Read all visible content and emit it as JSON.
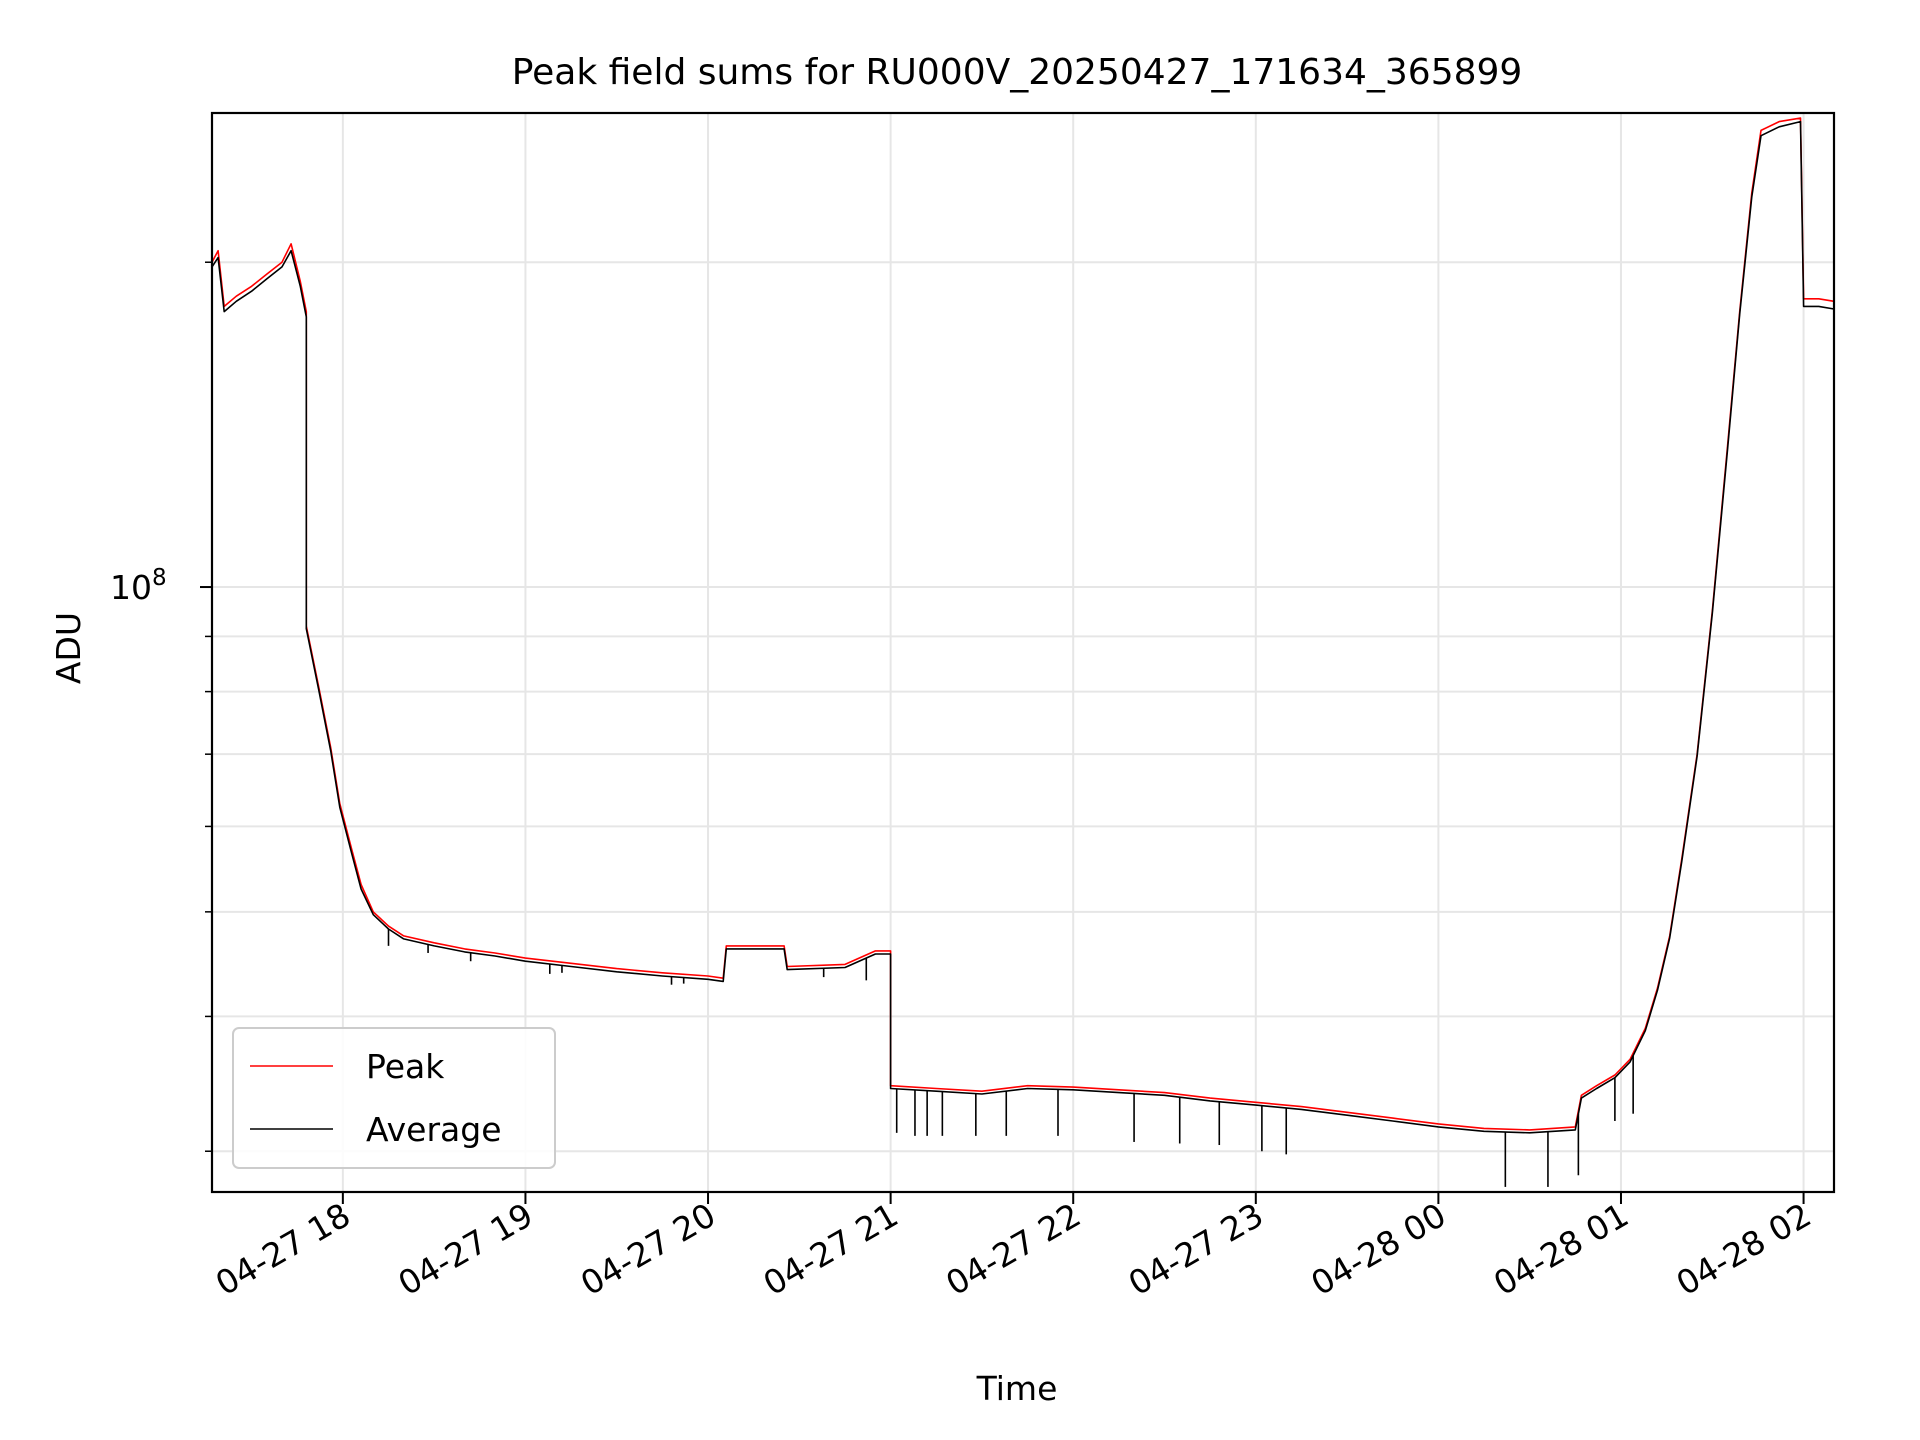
{
  "chart_data": {
    "type": "line",
    "title": "Peak field sums for RU000V_20250427_171634_365899",
    "xlabel": "Time",
    "ylabel": "ADU",
    "x_axis": {
      "type": "datetime",
      "range": [
        "2025-04-27 17:17",
        "2025-04-28 02:10"
      ],
      "ticks": [
        {
          "value": "2025-04-27 18:00",
          "label": "04-27 18"
        },
        {
          "value": "2025-04-27 19:00",
          "label": "04-27 19"
        },
        {
          "value": "2025-04-27 20:00",
          "label": "04-27 20"
        },
        {
          "value": "2025-04-27 21:00",
          "label": "04-27 21"
        },
        {
          "value": "2025-04-27 22:00",
          "label": "04-27 22"
        },
        {
          "value": "2025-04-27 23:00",
          "label": "04-27 23"
        },
        {
          "value": "2025-04-28 00:00",
          "label": "04-28 00"
        },
        {
          "value": "2025-04-28 01:00",
          "label": "04-28 01"
        },
        {
          "value": "2025-04-28 02:00",
          "label": "04-28 02"
        }
      ]
    },
    "y_axis": {
      "scale": "log",
      "range": [
        27500000,
        275000000
      ],
      "major_ticks": [
        {
          "value": 100000000,
          "label_base": "10",
          "label_exp": "8"
        }
      ],
      "minor_ticks": [
        30000000,
        40000000,
        50000000,
        60000000,
        70000000,
        80000000,
        90000000,
        200000000
      ]
    },
    "grid": true,
    "legend": {
      "position": "lower-left"
    },
    "series": [
      {
        "name": "Peak",
        "color": "#ff0000",
        "points": [
          [
            "2025-04-27 17:17",
            200000000
          ],
          [
            "2025-04-27 17:19",
            205000000
          ],
          [
            "2025-04-27 17:21",
            182000000
          ],
          [
            "2025-04-27 17:25",
            186000000
          ],
          [
            "2025-04-27 17:30",
            190000000
          ],
          [
            "2025-04-27 17:35",
            195000000
          ],
          [
            "2025-04-27 17:40",
            200000000
          ],
          [
            "2025-04-27 17:43",
            208000000
          ],
          [
            "2025-04-27 17:46",
            192000000
          ],
          [
            "2025-04-27 17:48",
            180000000
          ],
          [
            "2025-04-27 17:48",
            92000000
          ],
          [
            "2025-04-27 17:52",
            81000000
          ],
          [
            "2025-04-27 17:56",
            71000000
          ],
          [
            "2025-04-27 17:59",
            63000000
          ],
          [
            "2025-04-27 18:03",
            57000000
          ],
          [
            "2025-04-27 18:06",
            53000000
          ],
          [
            "2025-04-27 18:10",
            50000000
          ],
          [
            "2025-04-27 18:15",
            48500000
          ],
          [
            "2025-04-27 18:20",
            47500000
          ],
          [
            "2025-04-27 18:30",
            46800000
          ],
          [
            "2025-04-27 18:40",
            46200000
          ],
          [
            "2025-04-27 18:50",
            45800000
          ],
          [
            "2025-04-27 19:00",
            45300000
          ],
          [
            "2025-04-27 19:15",
            44800000
          ],
          [
            "2025-04-27 19:30",
            44300000
          ],
          [
            "2025-04-27 19:45",
            43900000
          ],
          [
            "2025-04-27 20:00",
            43600000
          ],
          [
            "2025-04-27 20:05",
            43400000
          ],
          [
            "2025-04-27 20:06",
            46500000
          ],
          [
            "2025-04-27 20:25",
            46500000
          ],
          [
            "2025-04-27 20:26",
            44500000
          ],
          [
            "2025-04-27 20:45",
            44700000
          ],
          [
            "2025-04-27 20:55",
            46000000
          ],
          [
            "2025-04-27 21:00",
            46000000
          ],
          [
            "2025-04-27 21:00",
            34500000
          ],
          [
            "2025-04-27 21:15",
            34300000
          ],
          [
            "2025-04-27 21:30",
            34100000
          ],
          [
            "2025-04-27 21:45",
            34500000
          ],
          [
            "2025-04-27 22:00",
            34400000
          ],
          [
            "2025-04-27 22:15",
            34200000
          ],
          [
            "2025-04-27 22:30",
            34000000
          ],
          [
            "2025-04-27 22:45",
            33600000
          ],
          [
            "2025-04-27 23:00",
            33300000
          ],
          [
            "2025-04-27 23:15",
            33000000
          ],
          [
            "2025-04-27 23:30",
            32600000
          ],
          [
            "2025-04-27 23:45",
            32200000
          ],
          [
            "2025-04-28 00:00",
            31800000
          ],
          [
            "2025-04-28 00:15",
            31500000
          ],
          [
            "2025-04-28 00:30",
            31400000
          ],
          [
            "2025-04-28 00:45",
            31600000
          ],
          [
            "2025-04-28 00:47",
            33800000
          ],
          [
            "2025-04-28 00:52",
            34500000
          ],
          [
            "2025-04-28 00:58",
            35300000
          ],
          [
            "2025-04-28 01:03",
            36500000
          ],
          [
            "2025-04-28 01:08",
            39000000
          ],
          [
            "2025-04-28 01:12",
            42500000
          ],
          [
            "2025-04-28 01:16",
            47500000
          ],
          [
            "2025-04-28 01:20",
            56000000
          ],
          [
            "2025-04-28 01:25",
            70000000
          ],
          [
            "2025-04-28 01:30",
            95000000
          ],
          [
            "2025-04-28 01:35",
            135000000
          ],
          [
            "2025-04-28 01:39",
            180000000
          ],
          [
            "2025-04-28 01:43",
            232000000
          ],
          [
            "2025-04-28 01:46",
            265000000
          ],
          [
            "2025-04-28 01:52",
            270000000
          ],
          [
            "2025-04-28 01:59",
            272000000
          ],
          [
            "2025-04-28 02:00",
            185000000
          ],
          [
            "2025-04-28 02:05",
            185000000
          ],
          [
            "2025-04-28 02:10",
            184000000
          ]
        ]
      },
      {
        "name": "Average",
        "color": "#000000",
        "points": [
          [
            "2025-04-27 17:17",
            198000000
          ],
          [
            "2025-04-27 17:19",
            202000000
          ],
          [
            "2025-04-27 17:21",
            180000000
          ],
          [
            "2025-04-27 17:25",
            184000000
          ],
          [
            "2025-04-27 17:30",
            188000000
          ],
          [
            "2025-04-27 17:35",
            193000000
          ],
          [
            "2025-04-27 17:40",
            198000000
          ],
          [
            "2025-04-27 17:43",
            205000000
          ],
          [
            "2025-04-27 17:46",
            190000000
          ],
          [
            "2025-04-27 17:48",
            178000000
          ],
          [
            "2025-04-27 17:48",
            91500000
          ],
          [
            "2025-04-27 17:52",
            80500000
          ],
          [
            "2025-04-27 17:56",
            70500000
          ],
          [
            "2025-04-27 17:59",
            62500000
          ],
          [
            "2025-04-27 18:03",
            56500000
          ],
          [
            "2025-04-27 18:06",
            52500000
          ],
          [
            "2025-04-27 18:10",
            49700000
          ],
          [
            "2025-04-27 18:15",
            48200000
          ],
          [
            "2025-04-27 18:20",
            47200000
          ],
          [
            "2025-04-27 18:30",
            46500000
          ],
          [
            "2025-04-27 18:40",
            45900000
          ],
          [
            "2025-04-27 18:50",
            45500000
          ],
          [
            "2025-04-27 19:00",
            45000000
          ],
          [
            "2025-04-27 19:15",
            44500000
          ],
          [
            "2025-04-27 19:30",
            44000000
          ],
          [
            "2025-04-27 19:45",
            43600000
          ],
          [
            "2025-04-27 20:00",
            43300000
          ],
          [
            "2025-04-27 20:05",
            43100000
          ],
          [
            "2025-04-27 20:06",
            46200000
          ],
          [
            "2025-04-27 20:25",
            46200000
          ],
          [
            "2025-04-27 20:26",
            44200000
          ],
          [
            "2025-04-27 20:45",
            44400000
          ],
          [
            "2025-04-27 20:55",
            45700000
          ],
          [
            "2025-04-27 21:00",
            45700000
          ],
          [
            "2025-04-27 21:00",
            34300000
          ],
          [
            "2025-04-27 21:15",
            34100000
          ],
          [
            "2025-04-27 21:30",
            33900000
          ],
          [
            "2025-04-27 21:45",
            34300000
          ],
          [
            "2025-04-27 22:00",
            34200000
          ],
          [
            "2025-04-27 22:15",
            34000000
          ],
          [
            "2025-04-27 22:30",
            33800000
          ],
          [
            "2025-04-27 22:45",
            33400000
          ],
          [
            "2025-04-27 23:00",
            33100000
          ],
          [
            "2025-04-27 23:15",
            32800000
          ],
          [
            "2025-04-27 23:30",
            32400000
          ],
          [
            "2025-04-27 23:45",
            32000000
          ],
          [
            "2025-04-28 00:00",
            31600000
          ],
          [
            "2025-04-28 00:15",
            31300000
          ],
          [
            "2025-04-28 00:30",
            31200000
          ],
          [
            "2025-04-28 00:45",
            31400000
          ],
          [
            "2025-04-28 00:47",
            33600000
          ],
          [
            "2025-04-28 00:52",
            34300000
          ],
          [
            "2025-04-28 00:58",
            35100000
          ],
          [
            "2025-04-28 01:03",
            36300000
          ],
          [
            "2025-04-28 01:08",
            38800000
          ],
          [
            "2025-04-28 01:12",
            42300000
          ],
          [
            "2025-04-28 01:16",
            47300000
          ],
          [
            "2025-04-28 01:20",
            55700000
          ],
          [
            "2025-04-28 01:25",
            69700000
          ],
          [
            "2025-04-28 01:30",
            94500000
          ],
          [
            "2025-04-28 01:35",
            134000000
          ],
          [
            "2025-04-28 01:39",
            179000000
          ],
          [
            "2025-04-28 01:43",
            230000000
          ],
          [
            "2025-04-28 01:46",
            262000000
          ],
          [
            "2025-04-28 01:52",
            267000000
          ],
          [
            "2025-04-28 01:59",
            270000000
          ],
          [
            "2025-04-28 02:00",
            182000000
          ],
          [
            "2025-04-28 02:05",
            182000000
          ],
          [
            "2025-04-28 02:10",
            181000000
          ]
        ],
        "dropouts": [
          [
            "2025-04-27 18:15",
            46500000
          ],
          [
            "2025-04-27 18:28",
            45800000
          ],
          [
            "2025-04-27 18:42",
            45000000
          ],
          [
            "2025-04-27 19:08",
            43800000
          ],
          [
            "2025-04-27 19:12",
            43900000
          ],
          [
            "2025-04-27 19:48",
            42800000
          ],
          [
            "2025-04-27 19:52",
            42900000
          ],
          [
            "2025-04-27 20:38",
            43500000
          ],
          [
            "2025-04-27 20:52",
            43200000
          ],
          [
            "2025-04-27 21:02",
            31200000
          ],
          [
            "2025-04-27 21:08",
            31000000
          ],
          [
            "2025-04-27 21:12",
            31000000
          ],
          [
            "2025-04-27 21:17",
            31000000
          ],
          [
            "2025-04-27 21:28",
            31000000
          ],
          [
            "2025-04-27 21:38",
            31000000
          ],
          [
            "2025-04-27 21:55",
            31000000
          ],
          [
            "2025-04-27 22:20",
            30600000
          ],
          [
            "2025-04-27 22:35",
            30500000
          ],
          [
            "2025-04-27 22:48",
            30400000
          ],
          [
            "2025-04-27 23:02",
            30000000
          ],
          [
            "2025-04-27 23:10",
            29800000
          ],
          [
            "2025-04-28 00:22",
            27800000
          ],
          [
            "2025-04-28 00:36",
            27800000
          ],
          [
            "2025-04-28 00:46",
            28500000
          ],
          [
            "2025-04-28 00:58",
            32000000
          ],
          [
            "2025-04-28 01:04",
            32500000
          ]
        ]
      }
    ]
  }
}
